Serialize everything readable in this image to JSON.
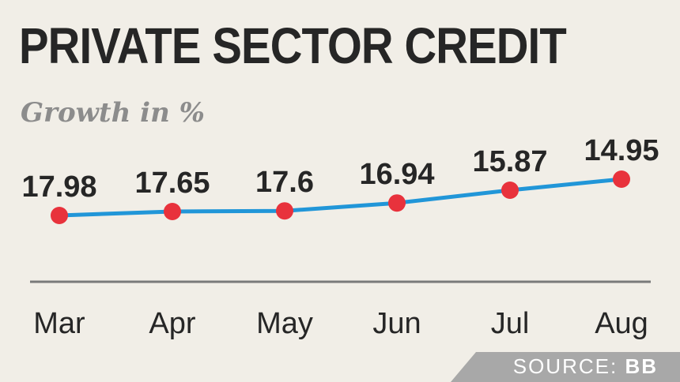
{
  "title": "PRIVATE SECTOR CREDIT",
  "subtitle": "Growth in %",
  "source": {
    "label": "SOURCE:",
    "value": "BB"
  },
  "colors": {
    "line": "#2196d8",
    "marker": "#e8323c",
    "axis": "#7a7a7a",
    "text": "#262626",
    "subtitle": "#8c8c8c",
    "source_band": "#a8a8a8",
    "background": "#f1eee7"
  },
  "chart_data": {
    "type": "line",
    "title": "PRIVATE SECTOR CREDIT",
    "subtitle": "Growth in %",
    "categories": [
      "Mar",
      "Apr",
      "May",
      "Jun",
      "Jul",
      "Aug"
    ],
    "series": [
      {
        "values": [
          17.98,
          17.65,
          17.6,
          16.94,
          15.87,
          14.95
        ]
      }
    ],
    "data_labels": [
      "17.98",
      "17.65",
      "17.6",
      "16.94",
      "15.87",
      "14.95"
    ],
    "grid": false,
    "legend": "none"
  }
}
